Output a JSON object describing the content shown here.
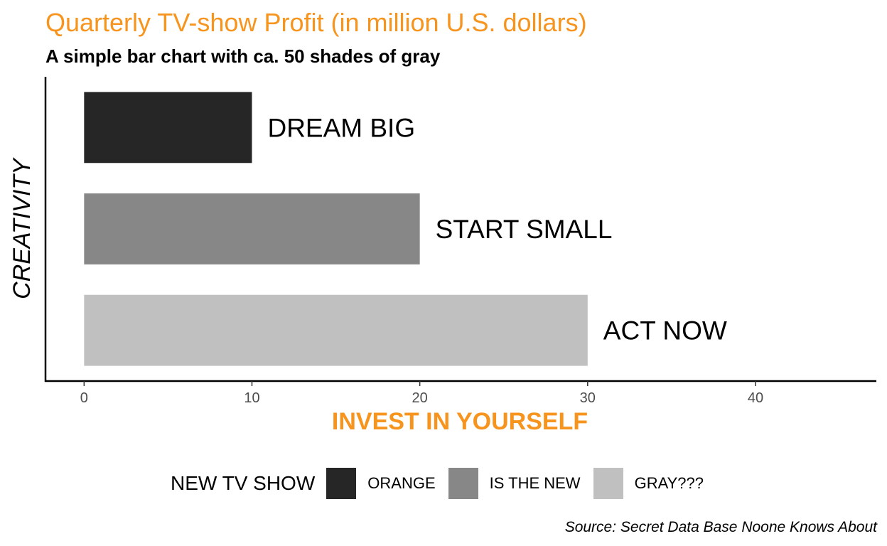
{
  "chart_data": {
    "type": "bar",
    "orientation": "horizontal",
    "title": "Quarterly TV-show Profit (in million U.S. dollars)",
    "subtitle": "A simple bar chart with ca. 50 shades of gray",
    "caption": "Source: Secret Data Base Noone Knows About",
    "xlabel": "INVEST IN YOURSELF",
    "ylabel": "CREATIVITY",
    "xlim": [
      -2.3,
      47.2
    ],
    "xticks": [
      "0",
      "10",
      "20",
      "30",
      "40"
    ],
    "grid": false,
    "categories": [
      "DREAM BIG",
      "START SMALL",
      "ACT NOW"
    ],
    "values": [
      10,
      20,
      30
    ],
    "bar_colors": [
      "#262626",
      "#878787",
      "#c0c0c0"
    ],
    "legend": {
      "title": "NEW TV SHOW",
      "placement": "bottom",
      "entries": [
        {
          "label": "ORANGE",
          "color": "#262626"
        },
        {
          "label": "IS THE NEW",
          "color": "#878787"
        },
        {
          "label": "GRAY???",
          "color": "#c0c0c0"
        }
      ]
    },
    "colors": {
      "title": "#f7941d",
      "xlabel": "#f7941d",
      "text": "#000000",
      "tick_text": "#4d4d4d"
    }
  }
}
